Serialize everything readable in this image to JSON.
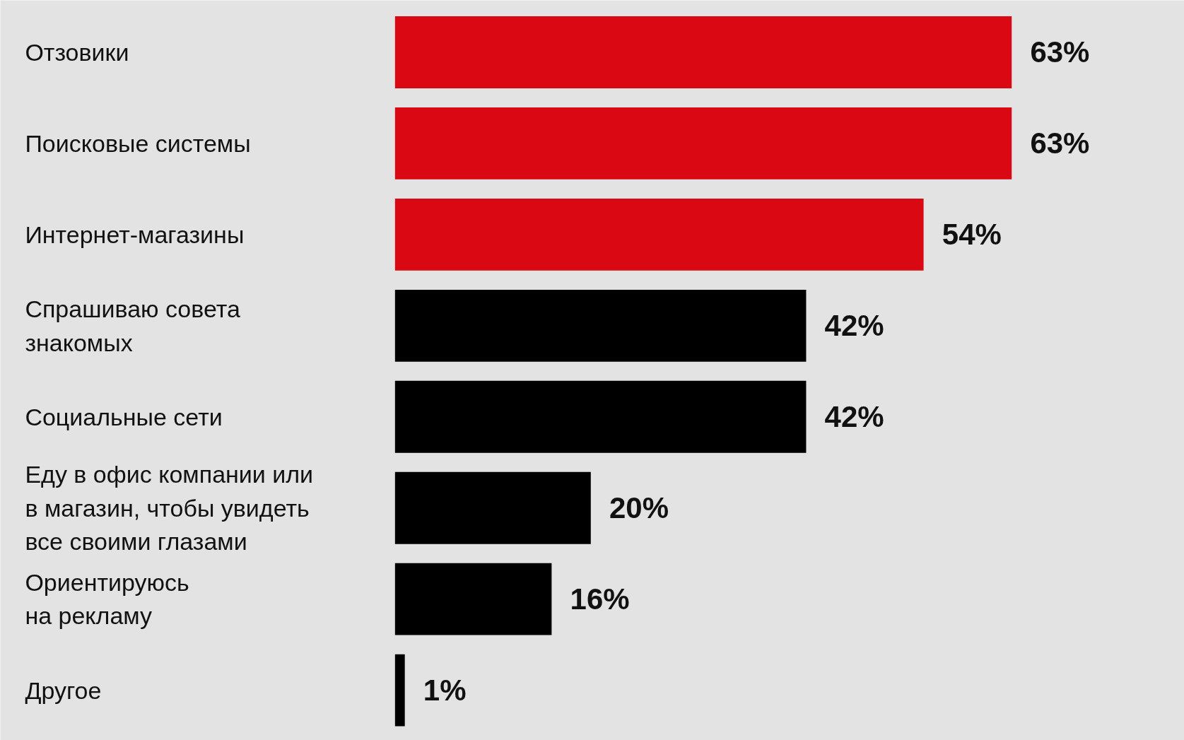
{
  "chart_data": {
    "type": "bar",
    "orientation": "horizontal",
    "data_labels": true,
    "categories": [
      "Отзовики",
      "Поисковые системы",
      "Интернет-магазины",
      "Спрашиваю совета\nзнакомых",
      "Социальные сети",
      "Еду в офис компании или\nв магазин, чтобы увидеть\nвсе своими глазами",
      "Ориентируюсь\nна рекламу",
      "Другое"
    ],
    "values": [
      63,
      63,
      54,
      42,
      42,
      20,
      16,
      1
    ],
    "value_labels": [
      "63%",
      "63%",
      "54%",
      "42%",
      "42%",
      "20%",
      "16%",
      "1%"
    ],
    "colors": [
      "#d90812",
      "#d90812",
      "#d90812",
      "#000000",
      "#000000",
      "#000000",
      "#000000",
      "#000000"
    ]
  }
}
